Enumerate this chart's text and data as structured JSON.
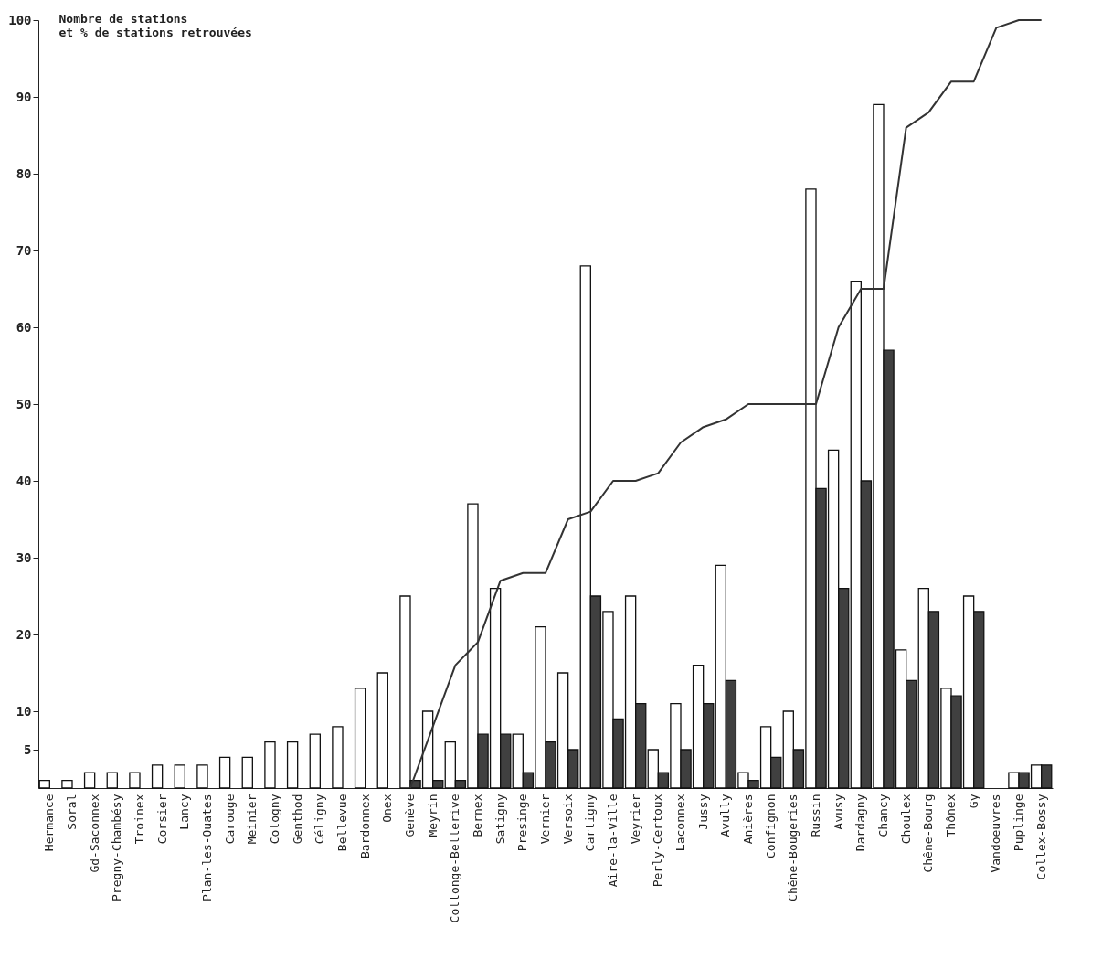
{
  "chart_data": {
    "type": "bar",
    "ylabel": "Nombre de stations\net % de stations retrouvées",
    "categories": [
      "Hermance",
      "Soral",
      "Gd-Saconnex",
      "Pregny-Chambésy",
      "Troinex",
      "Corsier",
      "Lancy",
      "Plan-les-Ouates",
      "Carouge",
      "Meinier",
      "Cologny",
      "Genthod",
      "Céligny",
      "Bellevue",
      "Bardonnex",
      "Onex",
      "Genève",
      "Meyrin",
      "Collonge-Bellerive",
      "Bernex",
      "Satigny",
      "Presinge",
      "Vernier",
      "Versoix",
      "Cartigny",
      "Aire-la-Ville",
      "Veyrier",
      "Perly-Certoux",
      "Laconnex",
      "Jussy",
      "Avully",
      "Anières",
      "Confignon",
      "Chêne-Bougeries",
      "Russin",
      "Avusy",
      "Dardagny",
      "Chancy",
      "Choulex",
      "Chêne-Bourg",
      "Thônex",
      "Gy",
      "Vandoeuvres",
      "Puplinge",
      "Collex-Bossy"
    ],
    "series": [
      {
        "color": "#ffffff",
        "values": [
          1,
          1,
          2,
          2,
          2,
          3,
          3,
          3,
          4,
          4,
          6,
          6,
          7,
          8,
          13,
          15,
          25,
          10,
          6,
          37,
          26,
          7,
          21,
          15,
          68,
          23,
          25,
          5,
          11,
          16,
          29,
          2,
          8,
          10,
          78,
          44,
          66,
          89,
          18,
          26,
          13,
          25,
          null,
          2,
          3
        ]
      },
      {
        "color": "#404040",
        "values": [
          null,
          null,
          null,
          null,
          null,
          null,
          null,
          null,
          null,
          null,
          null,
          null,
          null,
          null,
          null,
          null,
          1,
          1,
          1,
          7,
          7,
          2,
          6,
          5,
          25,
          9,
          11,
          2,
          5,
          11,
          14,
          1,
          4,
          5,
          39,
          26,
          40,
          57,
          14,
          23,
          12,
          23,
          null,
          2,
          3
        ]
      },
      {
        "type": "line",
        "color": "#333333",
        "values": [
          null,
          null,
          null,
          null,
          null,
          null,
          null,
          null,
          null,
          null,
          null,
          null,
          null,
          null,
          null,
          null,
          0,
          8,
          16,
          19,
          27,
          28,
          28,
          35,
          36,
          40,
          40,
          41,
          45,
          47,
          48,
          50,
          50,
          50,
          50,
          60,
          65,
          65,
          86,
          88,
          92,
          92,
          99,
          100,
          100
        ]
      }
    ],
    "ylim": [
      0,
      100
    ],
    "yticks": [
      5,
      10,
      20,
      30,
      40,
      50,
      60,
      70,
      80,
      90,
      100
    ],
    "grid": false,
    "legend": false
  }
}
